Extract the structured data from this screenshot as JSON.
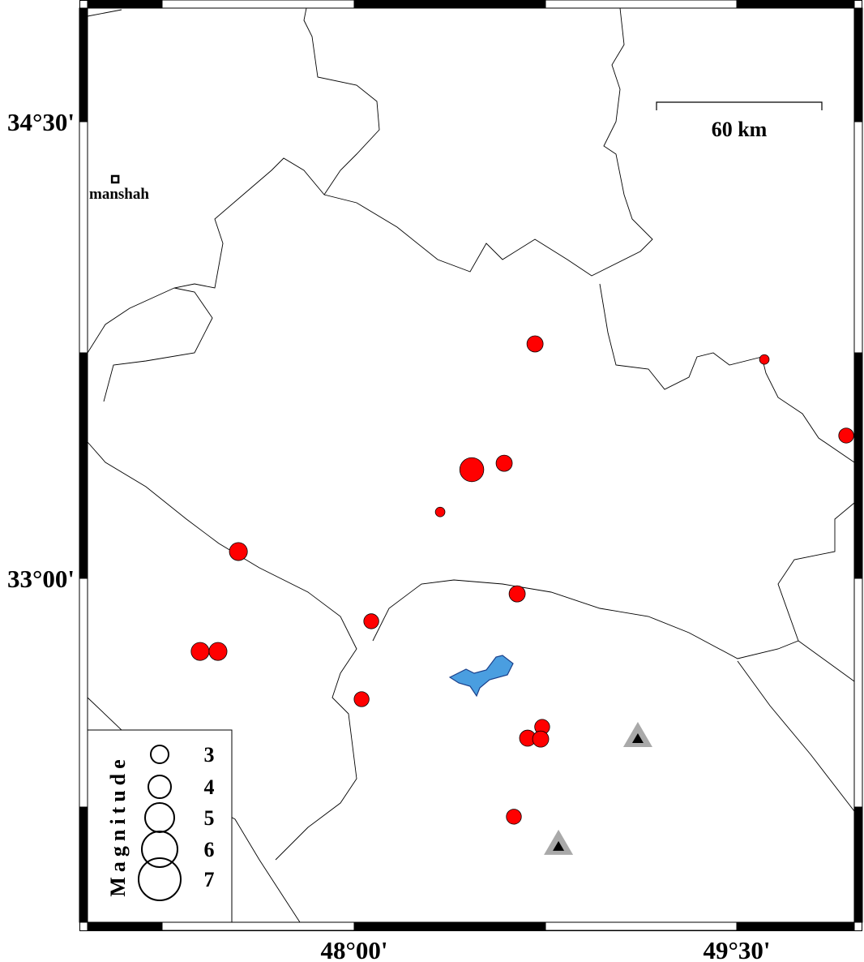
{
  "map": {
    "extent": {
      "lon": [
        46.78,
        49.97
      ],
      "lat": [
        32.03,
        34.88
      ]
    },
    "axis_labels": {
      "lon": [
        {
          "value": 48.0,
          "label": "48°00'"
        },
        {
          "value": 49.5,
          "label": "49°30'"
        }
      ],
      "lat": [
        {
          "value": 34.5,
          "label": "34°30'"
        },
        {
          "value": 33.0,
          "label": "33°00'"
        }
      ]
    },
    "scale_bar": {
      "label": "60 km"
    },
    "city": {
      "name": "manshah",
      "lon": 47.063,
      "lat": 34.311
    },
    "colors": {
      "event": "#ff0000",
      "lake": "#4a9ee0",
      "station_outer": "#a9a9a9",
      "station_inner": "#000000",
      "boundary": "#000000"
    },
    "events": [
      {
        "lon": 48.709,
        "lat": 33.77,
        "mag": 2.7
      },
      {
        "lon": 49.608,
        "lat": 33.719,
        "mag": 1.6
      },
      {
        "lon": 49.929,
        "lat": 33.469,
        "mag": 2.5
      },
      {
        "lon": 48.461,
        "lat": 33.357,
        "mag": 4.0
      },
      {
        "lon": 48.588,
        "lat": 33.378,
        "mag": 2.7
      },
      {
        "lon": 48.337,
        "lat": 33.218,
        "mag": 1.6
      },
      {
        "lon": 47.546,
        "lat": 33.088,
        "mag": 3.0
      },
      {
        "lon": 48.639,
        "lat": 32.949,
        "mag": 2.7
      },
      {
        "lon": 48.067,
        "lat": 32.859,
        "mag": 2.5
      },
      {
        "lon": 47.396,
        "lat": 32.76,
        "mag": 3.0
      },
      {
        "lon": 47.466,
        "lat": 32.76,
        "mag": 3.0
      },
      {
        "lon": 48.029,
        "lat": 32.603,
        "mag": 2.5
      },
      {
        "lon": 48.737,
        "lat": 32.512,
        "mag": 2.5
      },
      {
        "lon": 48.68,
        "lat": 32.475,
        "mag": 2.7
      },
      {
        "lon": 48.731,
        "lat": 32.472,
        "mag": 2.7
      },
      {
        "lon": 48.626,
        "lat": 32.217,
        "mag": 2.5
      }
    ],
    "stations": [
      {
        "lon": 49.112,
        "lat": 32.475
      },
      {
        "lon": 48.801,
        "lat": 32.121
      }
    ],
    "legend": {
      "title": "Magnitude",
      "magnitudes": [
        "3",
        "4",
        "5",
        "6",
        "7"
      ]
    }
  }
}
